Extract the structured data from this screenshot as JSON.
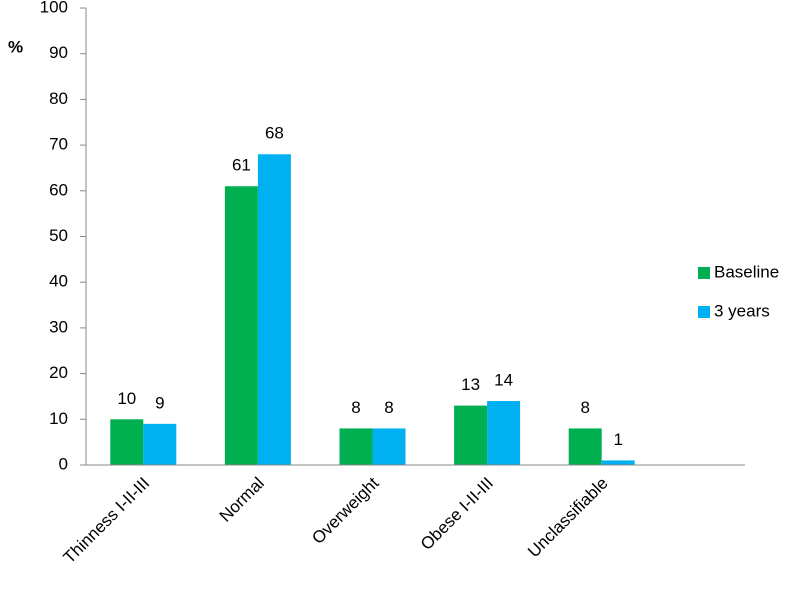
{
  "chart_data": {
    "type": "bar",
    "y_label": "%",
    "categories": [
      "Thinness I-II-III",
      "Normal",
      "Overweight",
      "Obese I-II-III",
      "Unclassifiable"
    ],
    "series": [
      {
        "name": "Baseline",
        "color": "#00b050",
        "values": [
          10,
          61,
          8,
          13,
          8
        ]
      },
      {
        "name": "3 years",
        "color": "#00b0f0",
        "values": [
          9,
          68,
          8,
          14,
          1
        ]
      }
    ],
    "ylim": [
      0,
      100
    ],
    "yticks": [
      0,
      10,
      20,
      30,
      40,
      50,
      60,
      70,
      80,
      90,
      100
    ],
    "legend": "right",
    "grid": false
  }
}
